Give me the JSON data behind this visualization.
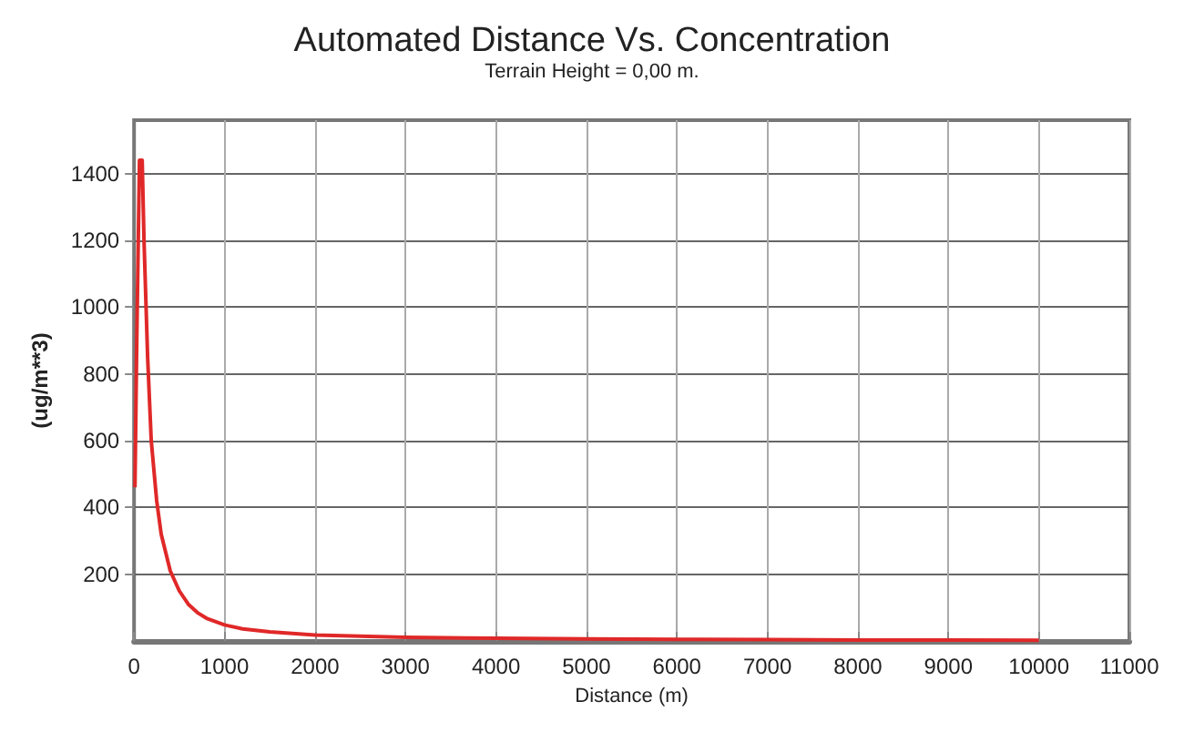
{
  "chart_data": {
    "type": "line",
    "title": "Automated Distance Vs. Concentration",
    "subtitle": "Terrain Height = 0,00 m.",
    "xlabel": "Distance (m)",
    "ylabel": "(ug/m**3)",
    "x": [
      10,
      30,
      60,
      90,
      110,
      150,
      190,
      250,
      300,
      400,
      500,
      600,
      700,
      800,
      1000,
      1200,
      1500,
      2000,
      2500,
      3000,
      4000,
      5000,
      6000,
      7000,
      8000,
      9000,
      10000
    ],
    "series": [
      {
        "color": "#e02828",
        "values": [
          460,
          900,
          1440,
          1440,
          1200,
          850,
          600,
          420,
          320,
          210,
          150,
          110,
          85,
          68,
          48,
          36,
          27,
          18,
          14,
          11,
          8,
          6,
          5,
          4,
          3,
          3,
          2
        ]
      }
    ],
    "xlim": [
      0,
      11000
    ],
    "xticks": [
      0,
      1000,
      2000,
      3000,
      4000,
      5000,
      6000,
      7000,
      8000,
      9000,
      10000,
      11000
    ],
    "ylim": [
      0,
      1560
    ],
    "yticks": [
      200,
      400,
      600,
      800,
      1000,
      1200,
      1400
    ],
    "grid": true,
    "marker": "none",
    "line_style": "solid"
  }
}
